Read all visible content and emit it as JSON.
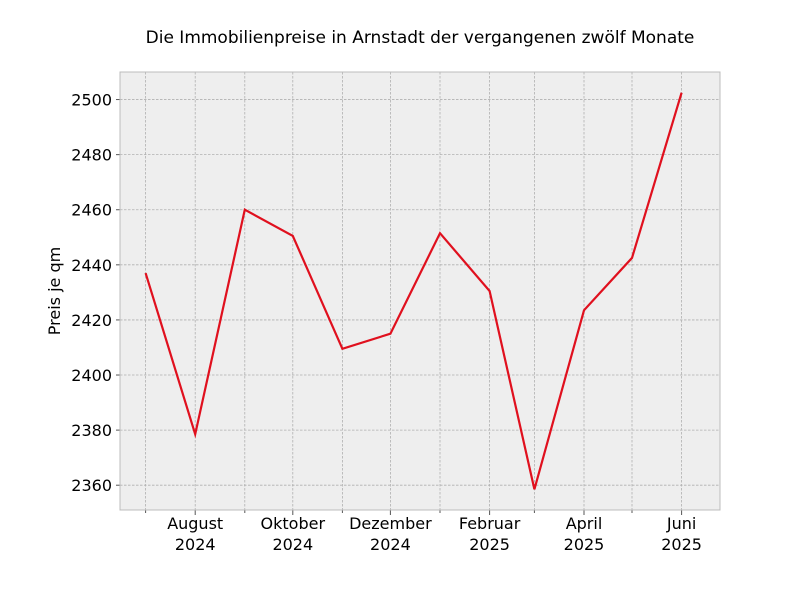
{
  "chart_data": {
    "type": "line",
    "title": "Die Immobilienpreise in Arnstadt der vergangenen zwölf Monate",
    "xlabel": "",
    "ylabel": "Preis je qm",
    "x": [
      "2024-07",
      "2024-08",
      "2024-09",
      "2024-10",
      "2024-11",
      "2024-12",
      "2025-01",
      "2025-02",
      "2025-03",
      "2025-04",
      "2025-05",
      "2025-06"
    ],
    "xlim": [
      "2024-06-15",
      "2025-06-25"
    ],
    "x_ticks": [
      {
        "x": "2024-08",
        "label_line1": "August",
        "label_line2": "2024"
      },
      {
        "x": "2024-10",
        "label_line1": "Oktober",
        "label_line2": "2024"
      },
      {
        "x": "2024-12",
        "label_line1": "Dezember",
        "label_line2": "2024"
      },
      {
        "x": "2025-02",
        "label_line1": "Februar",
        "label_line2": "2025"
      },
      {
        "x": "2025-04",
        "label_line1": "April",
        "label_line2": "2025"
      },
      {
        "x": "2025-06",
        "label_line1": "Juni",
        "label_line2": "2025"
      }
    ],
    "minor_x_ticks": [
      "2024-07",
      "2024-09",
      "2024-11",
      "2025-01",
      "2025-03",
      "2025-05"
    ],
    "series": [
      {
        "values": [
          2437,
          2378.5,
          2460,
          2450.5,
          2409.5,
          2415,
          2451.5,
          2430.5,
          2358.5,
          2423.5,
          2442.5,
          2502.5
        ],
        "color": "#e0101e"
      }
    ],
    "ylim": [
      2351,
      2510
    ],
    "y_ticks": [
      2360,
      2380,
      2400,
      2420,
      2440,
      2460,
      2480,
      2500
    ],
    "grid": true,
    "plot_background": "#eeeeee",
    "frame_color": "#bcbcbc"
  }
}
